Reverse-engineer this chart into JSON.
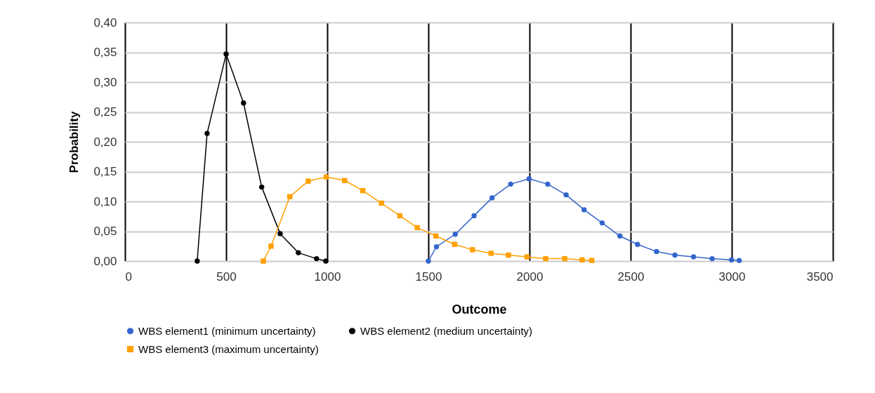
{
  "chart_data": {
    "type": "line",
    "xlabel": "Outcome",
    "ylabel": "Probability",
    "xlim": [
      0,
      3500
    ],
    "xticks": [
      0,
      500,
      1000,
      1500,
      2000,
      2500,
      3000,
      3500
    ],
    "ylim": [
      0,
      0.4
    ],
    "yticks": [
      {
        "value": 0,
        "label": "0,00"
      },
      {
        "value": 0.05,
        "label": "0,05"
      },
      {
        "value": 0.1,
        "label": "0,10"
      },
      {
        "value": 0.15,
        "label": "0,15"
      },
      {
        "value": 0.2,
        "label": "0,20"
      },
      {
        "value": 0.25,
        "label": "0,25"
      },
      {
        "value": 0.3,
        "label": "0,30"
      },
      {
        "value": 0.35,
        "label": "0,35"
      },
      {
        "value": 0.4,
        "label": "0,40"
      }
    ],
    "grid": true,
    "legend": "bottom",
    "series": [
      {
        "name": "WBS element1 (minimum uncertainty)",
        "color": "#3366cc",
        "marker": "circle",
        "x": [
          1500,
          1540,
          1633,
          1726,
          1815,
          1907,
          1998,
          2090,
          2181,
          2270,
          2359,
          2447,
          2534,
          2628,
          2719,
          2811,
          2903,
          2999,
          3037
        ],
        "values": [
          0,
          0.024,
          0.045,
          0.076,
          0.106,
          0.129,
          0.138,
          0.129,
          0.111,
          0.086,
          0.064,
          0.042,
          0.028,
          0.016,
          0.01,
          0.007,
          0.004,
          0.002,
          0.001
        ]
      },
      {
        "name": "WBS element2 (medium uncertainty)",
        "color": "#000000",
        "marker": "circle",
        "x": [
          357,
          406,
          500,
          586,
          676,
          767,
          857,
          947,
          993
        ],
        "values": [
          0,
          0.214,
          0.347,
          0.265,
          0.124,
          0.046,
          0.014,
          0.004,
          0
        ]
      },
      {
        "name": "WBS element3 (maximum uncertainty)",
        "color": "#ffa000",
        "marker": "square",
        "x": [
          684,
          722,
          815,
          906,
          995,
          1086,
          1176,
          1268,
          1359,
          1445,
          1537,
          1630,
          1718,
          1810,
          1896,
          1988,
          2080,
          2174,
          2260,
          2308
        ],
        "values": [
          0,
          0.025,
          0.108,
          0.134,
          0.141,
          0.135,
          0.118,
          0.097,
          0.076,
          0.056,
          0.042,
          0.028,
          0.019,
          0.013,
          0.01,
          0.007,
          0.004,
          0.004,
          0.002,
          0.001
        ]
      }
    ]
  }
}
